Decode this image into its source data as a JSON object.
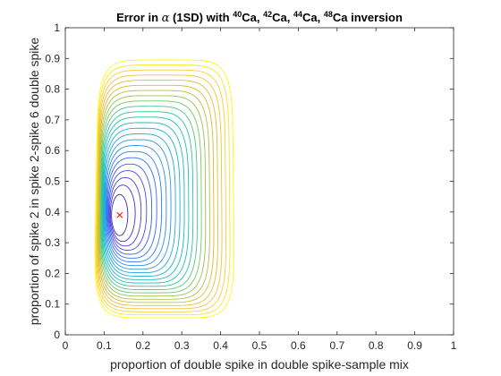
{
  "chart_data": {
    "type": "contour",
    "title_main": "Error in",
    "title_alpha": "α",
    "title_rest": " (1SD) with ",
    "title_isotopes": [
      {
        "mass": "40",
        "symbol": "Ca"
      },
      {
        "mass": "42",
        "symbol": "Ca"
      },
      {
        "mass": "44",
        "symbol": "Ca"
      },
      {
        "mass": "48",
        "symbol": "Ca"
      }
    ],
    "title_separator": ", ",
    "title_suffix": " inversion",
    "xlabel": "proportion of double spike in double spike-sample mix",
    "ylabel": "proportion of spike 2 in spike 2-spike 6 double spike",
    "xlim": [
      0,
      1
    ],
    "ylim": [
      0,
      1
    ],
    "xticks": [
      0,
      0.1,
      0.2,
      0.3,
      0.4,
      0.5,
      0.6,
      0.7,
      0.8,
      0.9,
      1
    ],
    "yticks": [
      0,
      0.1,
      0.2,
      0.3,
      0.4,
      0.5,
      0.6,
      0.7,
      0.8,
      0.9,
      1
    ],
    "xtick_labels": [
      "0",
      "0.1",
      "0.2",
      "0.3",
      "0.4",
      "0.5",
      "0.6",
      "0.7",
      "0.8",
      "0.9",
      "1"
    ],
    "ytick_labels": [
      "0",
      "0.1",
      "0.2",
      "0.3",
      "0.4",
      "0.5",
      "0.6",
      "0.7",
      "0.8",
      "0.9",
      "1"
    ],
    "grid": false,
    "box": true,
    "minimum": {
      "x": 0.14,
      "y": 0.39,
      "marker": "x",
      "color": "#ff0000"
    },
    "contour_level_count": 24,
    "colormap": [
      "#3e26a8",
      "#4743e8",
      "#2f6efe",
      "#2b97e6",
      "#17b5cc",
      "#22c2a6",
      "#7bc95a",
      "#d5bb2e",
      "#fdc13b",
      "#f9fb15"
    ],
    "outer_contour": {
      "center_x": 0.2575,
      "center_y": 0.475,
      "half_width": 0.1725,
      "half_height": 0.42
    }
  }
}
